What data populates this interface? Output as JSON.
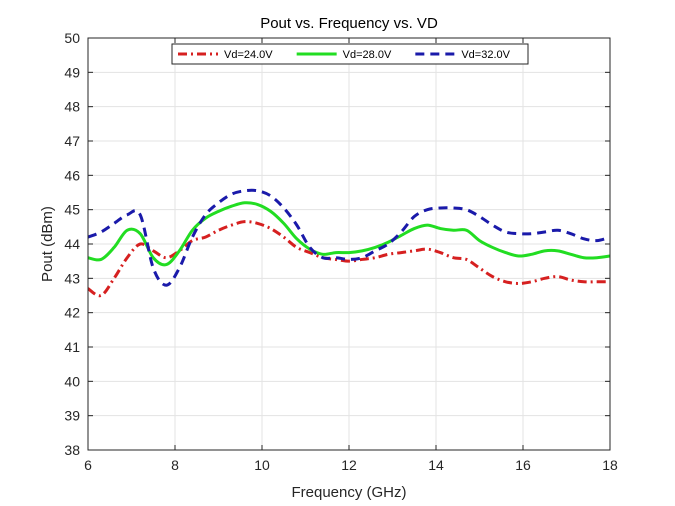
{
  "chart_data": {
    "type": "line",
    "title": "Pout vs. Frequency vs. VD",
    "xlabel": "Frequency (GHz)",
    "ylabel": "Pout (dBm)",
    "xlim": [
      6,
      18
    ],
    "ylim": [
      38,
      50
    ],
    "xticks": [
      6,
      8,
      10,
      12,
      14,
      16,
      18
    ],
    "yticks": [
      38,
      39,
      40,
      41,
      42,
      43,
      44,
      45,
      46,
      47,
      48,
      49,
      50
    ],
    "grid": true,
    "legend_position": "top-center",
    "series": [
      {
        "name": "Vd=24.0V",
        "color": "#d62020",
        "dash": "dash-dot",
        "x": [
          6.0,
          6.3,
          6.6,
          6.9,
          7.2,
          7.5,
          7.8,
          8.1,
          8.4,
          8.7,
          9.0,
          9.3,
          9.6,
          9.9,
          10.2,
          10.5,
          10.8,
          11.1,
          11.4,
          11.7,
          12.0,
          12.3,
          12.6,
          12.9,
          13.2,
          13.5,
          13.8,
          14.1,
          14.4,
          14.7,
          15.0,
          15.3,
          15.6,
          15.9,
          16.2,
          16.5,
          16.8,
          17.1,
          17.4,
          17.7,
          18.0
        ],
        "values": [
          42.7,
          42.5,
          43.0,
          43.6,
          44.0,
          43.8,
          43.6,
          43.8,
          44.1,
          44.2,
          44.4,
          44.55,
          44.65,
          44.6,
          44.45,
          44.2,
          43.9,
          43.75,
          43.6,
          43.55,
          43.5,
          43.55,
          43.6,
          43.7,
          43.75,
          43.8,
          43.85,
          43.75,
          43.6,
          43.55,
          43.3,
          43.05,
          42.9,
          42.85,
          42.9,
          43.0,
          43.05,
          42.95,
          42.9,
          42.9,
          42.9
        ]
      },
      {
        "name": "Vd=28.0V",
        "color": "#22dd22",
        "dash": "solid",
        "x": [
          6.0,
          6.3,
          6.6,
          6.9,
          7.2,
          7.5,
          7.8,
          8.1,
          8.4,
          8.7,
          9.0,
          9.3,
          9.6,
          9.9,
          10.2,
          10.5,
          10.8,
          11.1,
          11.4,
          11.7,
          12.0,
          12.3,
          12.6,
          12.9,
          13.2,
          13.5,
          13.8,
          14.1,
          14.4,
          14.7,
          15.0,
          15.3,
          15.6,
          15.9,
          16.2,
          16.5,
          16.8,
          17.1,
          17.4,
          17.7,
          18.0
        ],
        "values": [
          43.6,
          43.55,
          43.9,
          44.4,
          44.3,
          43.6,
          43.4,
          43.8,
          44.4,
          44.75,
          44.95,
          45.1,
          45.2,
          45.15,
          44.95,
          44.6,
          44.15,
          43.85,
          43.7,
          43.75,
          43.75,
          43.8,
          43.9,
          44.05,
          44.25,
          44.45,
          44.55,
          44.45,
          44.4,
          44.4,
          44.1,
          43.9,
          43.75,
          43.65,
          43.7,
          43.8,
          43.8,
          43.7,
          43.6,
          43.6,
          43.65
        ]
      },
      {
        "name": "Vd=32.0V",
        "color": "#1a1aaa",
        "dash": "dashed",
        "x": [
          6.0,
          6.3,
          6.6,
          6.9,
          7.2,
          7.5,
          7.8,
          8.1,
          8.4,
          8.7,
          9.0,
          9.3,
          9.6,
          9.9,
          10.2,
          10.5,
          10.8,
          11.1,
          11.4,
          11.7,
          12.0,
          12.3,
          12.6,
          12.9,
          13.2,
          13.5,
          13.8,
          14.1,
          14.4,
          14.7,
          15.0,
          15.3,
          15.6,
          15.9,
          16.2,
          16.5,
          16.8,
          17.1,
          17.4,
          17.7,
          18.0
        ],
        "values": [
          44.2,
          44.35,
          44.6,
          44.85,
          44.85,
          43.3,
          42.8,
          43.3,
          44.2,
          44.85,
          45.2,
          45.45,
          45.55,
          45.55,
          45.4,
          45.05,
          44.55,
          43.9,
          43.6,
          43.6,
          43.55,
          43.6,
          43.8,
          44.0,
          44.35,
          44.8,
          45.0,
          45.05,
          45.05,
          45.0,
          44.8,
          44.55,
          44.35,
          44.3,
          44.3,
          44.35,
          44.4,
          44.3,
          44.15,
          44.1,
          44.2
        ]
      }
    ]
  }
}
